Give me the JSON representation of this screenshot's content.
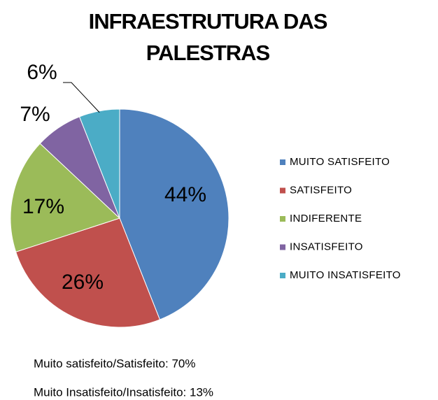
{
  "chart_data": {
    "type": "pie",
    "title": [
      "INFRAESTRUTURA DAS",
      "PALESTRAS"
    ],
    "categories": [
      "MUITO SATISFEITO",
      "SATISFEITO",
      "INDIFERENTE",
      "INSATISFEITO",
      "MUITO INSATISFEITO"
    ],
    "values": [
      44,
      26,
      17,
      7,
      6
    ],
    "value_labels": [
      "44%",
      "26%",
      "17%",
      "7%",
      "6%"
    ],
    "colors": [
      "#4f81bd",
      "#c0504d",
      "#9bbb59",
      "#8064a2",
      "#4bacc6"
    ],
    "legend": "right",
    "annotations": [
      "Muito satisfeito/Satisfeito: 70%",
      "Muito Insatisfeito/Insatisfeito: 13%"
    ]
  }
}
